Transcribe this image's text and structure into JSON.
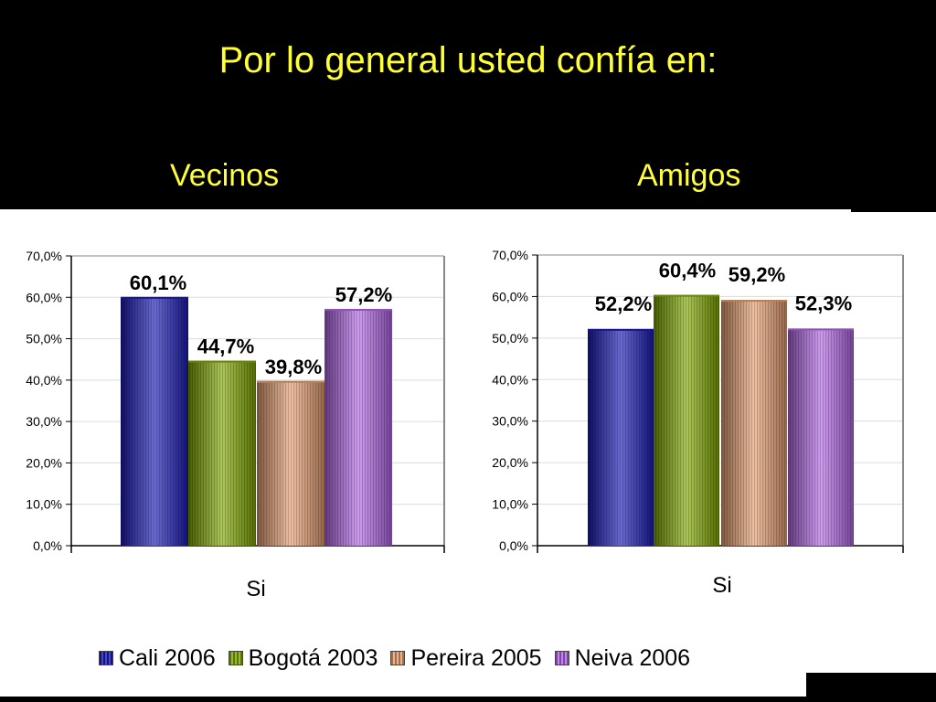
{
  "header": {
    "title": "Por lo general usted confía en:"
  },
  "colors": {
    "title": "#ffff33",
    "series": [
      "#1a1ab8",
      "#7fa800",
      "#e6a070",
      "#b266e6"
    ]
  },
  "chart_data": [
    {
      "type": "bar",
      "title": "Vecinos",
      "categories": [
        "Si"
      ],
      "series": [
        {
          "name": "Cali 2006",
          "values": [
            60.1
          ]
        },
        {
          "name": "Bogotá 2003",
          "values": [
            44.7
          ]
        },
        {
          "name": "Pereira 2005",
          "values": [
            39.8
          ]
        },
        {
          "name": "Neiva 2006",
          "values": [
            57.2
          ]
        }
      ],
      "data_labels": [
        "60,1%",
        "44,7%",
        "39,8%",
        "57,2%"
      ],
      "ylim": [
        0,
        70
      ],
      "yticks": [
        "0,0%",
        "10,0%",
        "20,0%",
        "30,0%",
        "40,0%",
        "50,0%",
        "60,0%",
        "70,0%"
      ],
      "grid": true,
      "legend": "bottom"
    },
    {
      "type": "bar",
      "title": "Amigos",
      "categories": [
        "Si"
      ],
      "series": [
        {
          "name": "Cali 2006",
          "values": [
            52.2
          ]
        },
        {
          "name": "Bogotá 2003",
          "values": [
            60.4
          ]
        },
        {
          "name": "Pereira 2005",
          "values": [
            59.2
          ]
        },
        {
          "name": "Neiva 2006",
          "values": [
            52.3
          ]
        }
      ],
      "data_labels": [
        "52,2%",
        "60,4%",
        "59,2%",
        "52,3%"
      ],
      "ylim": [
        0,
        70
      ],
      "yticks": [
        "0,0%",
        "10,0%",
        "20,0%",
        "30,0%",
        "40,0%",
        "50,0%",
        "60,0%",
        "70,0%"
      ],
      "grid": true,
      "legend": "bottom"
    }
  ],
  "legend": {
    "items": [
      "Cali 2006",
      "Bogotá 2003",
      "Pereira 2005",
      "Neiva 2006"
    ]
  }
}
